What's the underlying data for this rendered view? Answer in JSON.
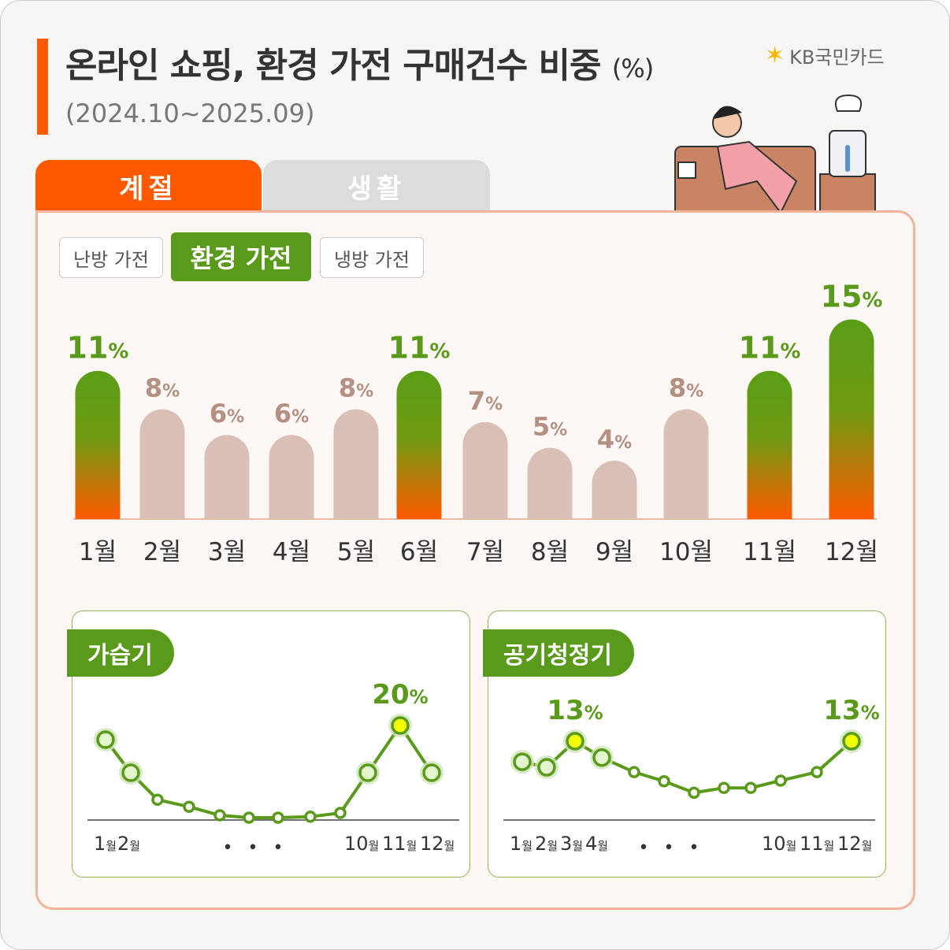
{
  "header": {
    "title": "온라인 쇼핑, 환경 가전 구매건수 비중",
    "unit": "(%)",
    "period": "(2024.10~2025.09)",
    "logo": "KB국민카드"
  },
  "tabs": [
    {
      "label": "계절",
      "active": true
    },
    {
      "label": "생활",
      "active": false
    }
  ],
  "filters": [
    {
      "label": "난방 가전",
      "active": false
    },
    {
      "label": "환경 가전",
      "active": true
    },
    {
      "label": "냉방 가전",
      "active": false
    }
  ],
  "colors": {
    "accent": "#ff5a00",
    "green": "#5a9a1a",
    "bar_muted": "#d9bfb5",
    "label_muted": "#b58f82"
  },
  "chart_data": [
    {
      "type": "bar",
      "categories": [
        "1월",
        "2월",
        "3월",
        "4월",
        "5월",
        "6월",
        "7월",
        "8월",
        "9월",
        "10월",
        "11월",
        "12월"
      ],
      "values": [
        11,
        8,
        6,
        6,
        8,
        11,
        7,
        5,
        4,
        8,
        11,
        15
      ],
      "data_labels": [
        "11%",
        "8%",
        "6%",
        "6%",
        "8%",
        "11%",
        "7%",
        "5%",
        "4%",
        "8%",
        "11%",
        "15%"
      ],
      "highlighted": [
        true,
        false,
        false,
        false,
        false,
        true,
        false,
        false,
        false,
        false,
        true,
        true
      ],
      "ylabel": "",
      "xlabel": ""
    },
    {
      "type": "line",
      "title": "가습기",
      "categories": [
        "1월",
        "2월",
        "3월",
        "4월",
        "5월",
        "6월",
        "7월",
        "8월",
        "9월",
        "10월",
        "11월",
        "12월"
      ],
      "values": [
        17,
        10,
        4.3,
        2.8,
        1,
        0.5,
        0.5,
        0.7,
        1.5,
        10,
        20,
        10
      ],
      "tick_labels": [
        "1월",
        "2월",
        "10월",
        "11월",
        "12월"
      ],
      "ellipsis": "• • •",
      "data_labels": [
        {
          "index": 10,
          "text": "20%"
        }
      ]
    },
    {
      "type": "line",
      "title": "공기청정기",
      "categories": [
        "1월",
        "2월",
        "3월",
        "4월",
        "5월",
        "6월",
        "7월",
        "8월",
        "9월",
        "10월",
        "11월",
        "12월"
      ],
      "values": [
        9.6,
        8.7,
        13,
        10.3,
        7.9,
        6.4,
        4.5,
        5.3,
        5.3,
        6.5,
        7.9,
        13
      ],
      "tick_labels": [
        "1월",
        "2월",
        "3월",
        "4월",
        "10월",
        "11월",
        "12월"
      ],
      "ellipsis": "• • •",
      "data_labels": [
        {
          "index": 2,
          "text": "13%"
        },
        {
          "index": 11,
          "text": "13%"
        }
      ]
    }
  ]
}
